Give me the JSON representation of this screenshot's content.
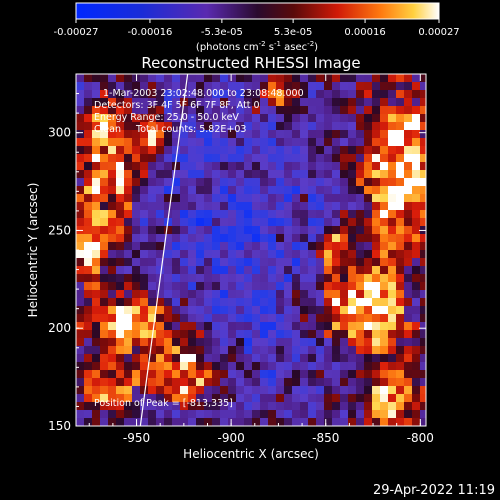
{
  "chart_data": {
    "type": "heatmap",
    "title": "Reconstructed RHESSI Image",
    "xlabel": "Heliocentric X (arcsec)",
    "ylabel": "Heliocentric Y (arcsec)",
    "xlim": [
      -982,
      -797
    ],
    "ylim": [
      150,
      330
    ],
    "xticks": [
      -950,
      -900,
      -850,
      -800
    ],
    "xtick_labels": [
      "-950",
      "-900",
      "-850",
      "-800"
    ],
    "yticks": [
      150,
      200,
      250,
      300
    ],
    "ytick_labels": [
      "150",
      "200",
      "250",
      "300"
    ],
    "colorbar": {
      "range": [
        -0.00027,
        0.00027
      ],
      "tick_values": [
        -0.00027,
        -0.00016,
        -5.3e-05,
        5.3e-05,
        0.00016,
        0.00027
      ],
      "tick_labels": [
        "-0.00027",
        "-0.00016",
        "-5.3e-05",
        "5.3e-05",
        "0.00016",
        "0.00027"
      ],
      "unit_base": "(photons cm",
      "unit_exp1": "-2",
      "unit_mid": " s",
      "unit_exp2": "-1",
      "unit_mid2": " asec",
      "unit_exp3": "-2",
      "unit_end": ")"
    },
    "annotations": [
      "1-Mar-2003 23:02:48.000 to 23:08:48.000",
      "Detectors: 3F 4F 5F 6F 7F 8F, Att 0",
      "Energy Range: 25.0 - 50.0 keV",
      "Clean     Total counts: 5.82E+03"
    ],
    "peak_label": "Position of Peak = [-813,335]",
    "peak_position": [
      -813,
      335
    ],
    "limb_line": [
      [
        -948,
        150
      ],
      [
        -923,
        330
      ]
    ],
    "hot_regions": [
      {
        "x": -965,
        "y": 285,
        "sx": 11,
        "sy": 20,
        "a": 1.0
      },
      {
        "x": -975,
        "y": 245,
        "sx": 9,
        "sy": 12,
        "a": 0.9
      },
      {
        "x": -955,
        "y": 205,
        "sx": 16,
        "sy": 12,
        "a": 1.0
      },
      {
        "x": -925,
        "y": 178,
        "sx": 14,
        "sy": 10,
        "a": 0.9
      },
      {
        "x": -940,
        "y": 300,
        "sx": 6,
        "sy": 6,
        "a": 0.8
      },
      {
        "x": -810,
        "y": 280,
        "sx": 14,
        "sy": 30,
        "a": 1.1
      },
      {
        "x": -830,
        "y": 210,
        "sx": 14,
        "sy": 15,
        "a": 1.1
      },
      {
        "x": -815,
        "y": 165,
        "sx": 11,
        "sy": 12,
        "a": 1.0
      },
      {
        "x": -845,
        "y": 240,
        "sx": 6,
        "sy": 8,
        "a": 0.7
      },
      {
        "x": -875,
        "y": 320,
        "sx": 10,
        "sy": 6,
        "a": 0.7
      },
      {
        "x": -965,
        "y": 170,
        "sx": 10,
        "sy": 10,
        "a": 0.8
      }
    ],
    "cold_regions": [
      {
        "x": -900,
        "y": 260,
        "sx": 30,
        "sy": 35,
        "a": 1.0
      },
      {
        "x": -880,
        "y": 190,
        "sx": 18,
        "sy": 20,
        "a": 0.6
      }
    ]
  },
  "footer": {
    "timestamp": "29-Apr-2022 11:19"
  }
}
